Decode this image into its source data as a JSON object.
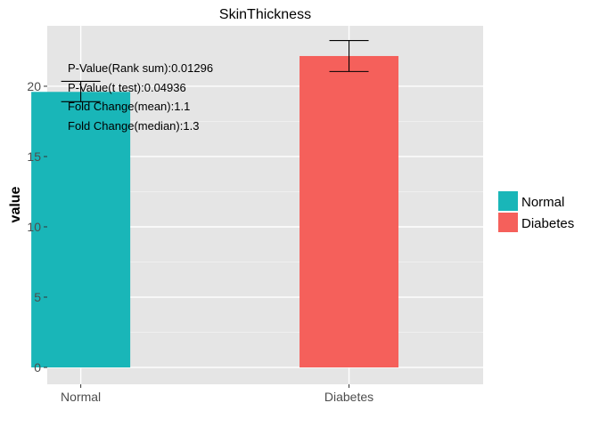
{
  "chart_data": {
    "type": "bar",
    "title": "SkinThickness",
    "xlabel": "",
    "ylabel": "value",
    "categories": [
      "Normal",
      "Diabetes"
    ],
    "values": [
      19.6,
      22.15
    ],
    "error_low": [
      18.9,
      21.05
    ],
    "error_high": [
      20.35,
      23.25
    ],
    "colors": [
      "#19b6b8",
      "#f5605b"
    ],
    "ylim": [
      -1.2,
      24.3
    ],
    "yticks": [
      0,
      5,
      10,
      15,
      20
    ],
    "ytick_labels": [
      "0",
      "5",
      "10",
      "15",
      "20"
    ],
    "grid": true,
    "legend": {
      "position": "right",
      "entries": [
        "Normal",
        "Diabetes"
      ]
    },
    "annotations": [
      "P-Value(Rank sum):0.01296",
      "P-Value(t test):0.04936",
      "Fold Change(mean):1.1",
      "Fold Change(median):1.3"
    ]
  }
}
